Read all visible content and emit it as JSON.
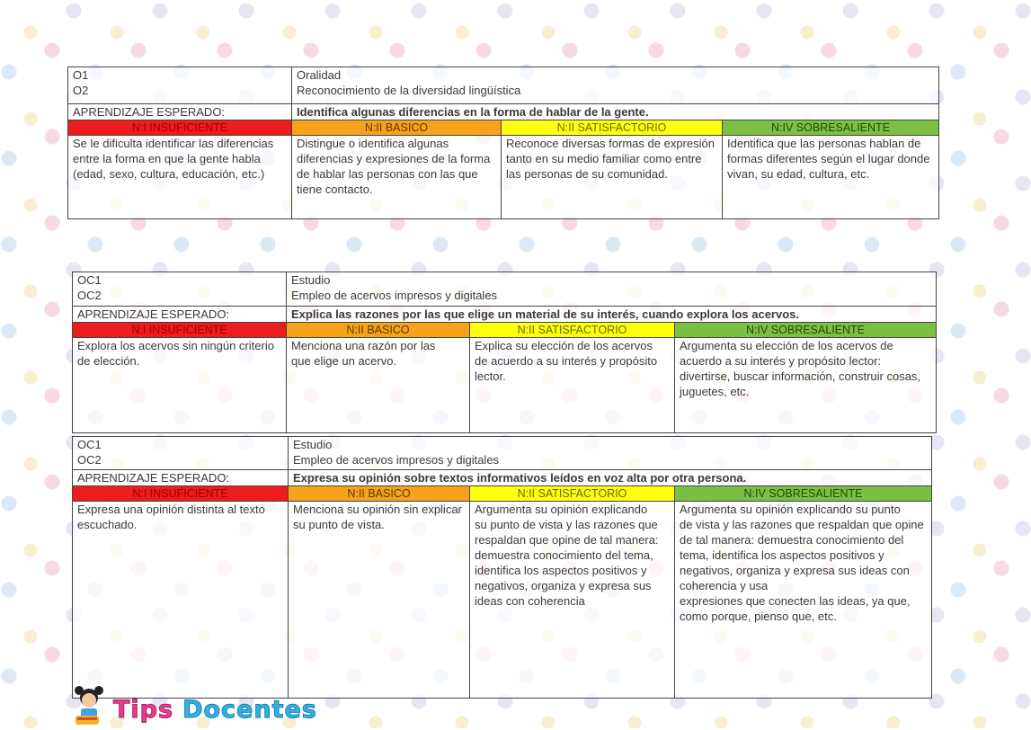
{
  "levels": {
    "i": "N:I INSUFICIENTE",
    "ii": "N:II BASICO",
    "iii": "N:II SATISFACTORIO",
    "iv": "N:IV SOBRESALIENTE"
  },
  "colors": {
    "insuficiente": "#ee1c1c",
    "basico": "#f7a21b",
    "satisfactorio": "#ffff10",
    "sobresaliente": "#7cc043"
  },
  "tables": [
    {
      "codes": "O1\nO2",
      "topics": "Oralidad\nReconocimiento de la diversidad lingüística",
      "aprendizaje_label": "APRENDIZAJE ESPERADO:",
      "aprendizaje": "Identifica algunas diferencias en la forma de hablar de la gente.",
      "cells": [
        "Se le dificulta identificar las diferencias entre la forma en que la  gente habla (edad, sexo, cultura,  educación, etc.)",
        "Distingue o identifica algunas diferencias y expresiones de la forma  de hablar las personas con las que  tiene contacto.",
        "Reconoce diversas formas de expresión tanto en su medio familiar  como entre las personas de su  comunidad.",
        "Identifica que las personas hablan de\nformas diferentes según el lugar  donde vivan, su edad, cultura, etc."
      ]
    },
    {
      "codes": "OC1\nOC2",
      "topics": "Estudio\nEmpleo de acervos impresos y digitales",
      "aprendizaje_label": "APRENDIZAJE ESPERADO:",
      "aprendizaje": "Explica las razones por las que elige un material de su interés, cuando explora los acervos.",
      "cells": [
        "Explora los acervos sin ningún criterio de elección.",
        "Menciona una razón por las\nque elige un acervo.",
        "Explica su elección de los acervos\nde acuerdo a su interés y propósito  lector.",
        "Argumenta su elección de los acervos de\nacuerdo a su interés y propósito lector:  divertirse, buscar información, construir  cosas, juguetes, etc."
      ]
    },
    {
      "codes": "OC1\nOC2",
      "topics": "Estudio\nEmpleo de acervos impresos y digitales",
      "aprendizaje_label": "APRENDIZAJE ESPERADO:",
      "aprendizaje": "Expresa su opinión sobre textos informativos leídos en voz alta por otra persona.",
      "cells": [
        "Expresa una opinión distinta al texto\nescuchado.",
        "Menciona su opinión sin explicar su punto de vista.",
        "Argumenta su opinión explicando\nsu punto de vista y las razones que  respaldan que opine de tal  manera: demuestra conocimiento del tema, identifica los aspectos  positivos y negativos, organiza y expresa sus ideas con coherencia",
        "Argumenta su opinión explicando su punto\nde vista y las razones que respaldan que  opine de tal manera: demuestra  conocimiento del tema, identifica los  aspectos positivos y negativos, organiza y expresa sus ideas con coherencia y usa\nexpresiones que conecten las ideas, ya que,  como porque, pienso que, etc."
      ]
    }
  ],
  "logo": {
    "word1": "Tips",
    "word2": "Docentes"
  }
}
